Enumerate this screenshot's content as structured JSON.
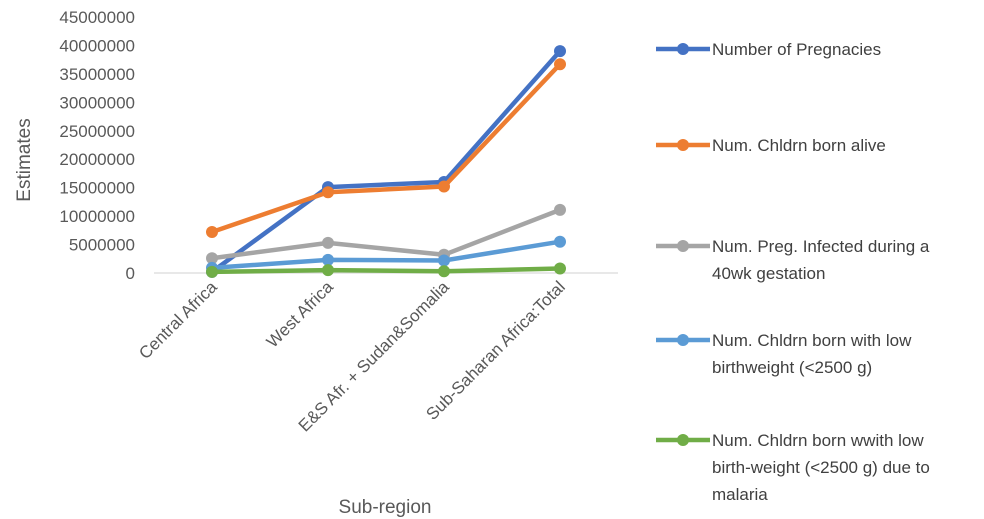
{
  "chart_data": {
    "type": "line",
    "xlabel": "Sub-region",
    "ylabel": "Estimates",
    "categories": [
      "Central Africa",
      "West Africa",
      "E&S Afr. + Sudan&Somalia",
      "Sub-Saharan Africa:Total"
    ],
    "ylim": [
      0,
      45000000
    ],
    "yticks": [
      "0",
      "5000000",
      "10000000",
      "15000000",
      "20000000",
      "25000000",
      "30000000",
      "35000000",
      "40000000",
      "45000000"
    ],
    "grid": false,
    "legend_position": "right",
    "series": [
      {
        "name": "Number of Pregnacies",
        "legend_lines": [
          "Number of Pregnacies"
        ],
        "color": "#4472C4",
        "values": [
          200000,
          15100000,
          16000000,
          39000000
        ]
      },
      {
        "name": "Num. Chldrn born alive",
        "legend_lines": [
          "Num. Chldrn born alive"
        ],
        "color": "#ED7D31",
        "values": [
          7200000,
          14200000,
          15200000,
          36700000
        ]
      },
      {
        "name": "Num. Preg. Infected during a 40wk gestation",
        "legend_lines": [
          "Num. Preg. Infected during a",
          "40wk gestation"
        ],
        "color": "#A5A5A5",
        "values": [
          2600000,
          5300000,
          3200000,
          11100000
        ]
      },
      {
        "name": "Num. Chldrn born with low birthweight (<2500 g)",
        "legend_lines": [
          "Num. Chldrn born with low",
          "birthweight (<2500 g)"
        ],
        "color": "#5B9BD5",
        "values": [
          900000,
          2300000,
          2200000,
          5500000
        ]
      },
      {
        "name": "Num. Chldrn born wwith low birth-weight (<2500 g) due to malaria",
        "legend_lines": [
          "Num. Chldrn born wwith low",
          "birth-weight (<2500 g) due to",
          "malaria"
        ],
        "color": "#70AD47",
        "values": [
          200000,
          500000,
          300000,
          800000
        ]
      }
    ]
  }
}
